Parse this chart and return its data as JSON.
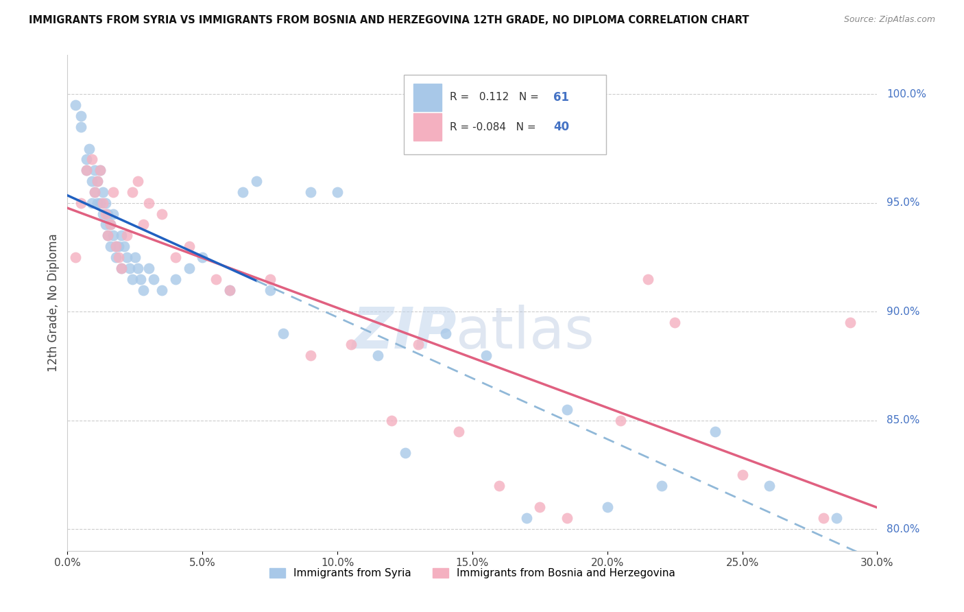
{
  "title": "IMMIGRANTS FROM SYRIA VS IMMIGRANTS FROM BOSNIA AND HERZEGOVINA 12TH GRADE, NO DIPLOMA CORRELATION CHART",
  "source": "Source: ZipAtlas.com",
  "ylabel": "12th Grade, No Diploma",
  "yticks": [
    80.0,
    85.0,
    90.0,
    95.0,
    100.0
  ],
  "xmin": 0.0,
  "xmax": 30.0,
  "ymin": 79.0,
  "ymax": 101.8,
  "r_syria": 0.112,
  "n_syria": 61,
  "r_bosnia": -0.084,
  "n_bosnia": 40,
  "legend_label_syria": "Immigrants from Syria",
  "legend_label_bosnia": "Immigrants from Bosnia and Herzegovina",
  "color_syria": "#a8c8e8",
  "color_bosnia": "#f4b0c0",
  "color_syria_line": "#2060c0",
  "color_bosnia_line": "#e06080",
  "color_dashed_line": "#90b8d8",
  "watermark_zip": "ZIP",
  "watermark_atlas": "atlas",
  "syria_x": [
    0.3,
    0.5,
    0.5,
    0.7,
    0.7,
    0.8,
    0.9,
    0.9,
    1.0,
    1.0,
    1.1,
    1.1,
    1.2,
    1.2,
    1.3,
    1.3,
    1.4,
    1.4,
    1.5,
    1.5,
    1.6,
    1.6,
    1.7,
    1.7,
    1.8,
    1.8,
    1.9,
    2.0,
    2.0,
    2.1,
    2.2,
    2.3,
    2.4,
    2.5,
    2.6,
    2.7,
    2.8,
    3.0,
    3.2,
    3.5,
    4.0,
    4.5,
    5.0,
    6.0,
    6.5,
    7.0,
    7.5,
    8.0,
    9.0,
    10.0,
    11.5,
    12.5,
    14.0,
    15.5,
    17.0,
    18.5,
    20.0,
    22.0,
    24.0,
    26.0,
    28.5
  ],
  "syria_y": [
    99.5,
    99.0,
    98.5,
    96.5,
    97.0,
    97.5,
    96.0,
    95.0,
    95.5,
    96.5,
    95.0,
    96.0,
    95.0,
    96.5,
    95.5,
    94.5,
    95.0,
    94.0,
    94.5,
    93.5,
    94.0,
    93.0,
    93.5,
    94.5,
    93.0,
    92.5,
    93.0,
    93.5,
    92.0,
    93.0,
    92.5,
    92.0,
    91.5,
    92.5,
    92.0,
    91.5,
    91.0,
    92.0,
    91.5,
    91.0,
    91.5,
    92.0,
    92.5,
    91.0,
    95.5,
    96.0,
    91.0,
    89.0,
    95.5,
    95.5,
    88.0,
    83.5,
    89.0,
    88.0,
    80.5,
    85.5,
    81.0,
    82.0,
    84.5,
    82.0,
    80.5
  ],
  "bosnia_x": [
    0.3,
    0.5,
    0.7,
    0.9,
    1.0,
    1.1,
    1.2,
    1.3,
    1.4,
    1.5,
    1.6,
    1.7,
    1.8,
    1.9,
    2.0,
    2.2,
    2.4,
    2.6,
    2.8,
    3.0,
    3.5,
    4.0,
    4.5,
    5.5,
    6.0,
    7.5,
    9.0,
    10.5,
    12.0,
    13.0,
    14.5,
    16.0,
    17.5,
    18.5,
    20.5,
    21.5,
    22.5,
    25.0,
    28.0,
    29.0
  ],
  "bosnia_y": [
    92.5,
    95.0,
    96.5,
    97.0,
    95.5,
    96.0,
    96.5,
    95.0,
    94.5,
    93.5,
    94.0,
    95.5,
    93.0,
    92.5,
    92.0,
    93.5,
    95.5,
    96.0,
    94.0,
    95.0,
    94.5,
    92.5,
    93.0,
    91.5,
    91.0,
    91.5,
    88.0,
    88.5,
    85.0,
    88.5,
    84.5,
    82.0,
    81.0,
    80.5,
    85.0,
    91.5,
    89.5,
    82.5,
    80.5,
    89.5
  ]
}
